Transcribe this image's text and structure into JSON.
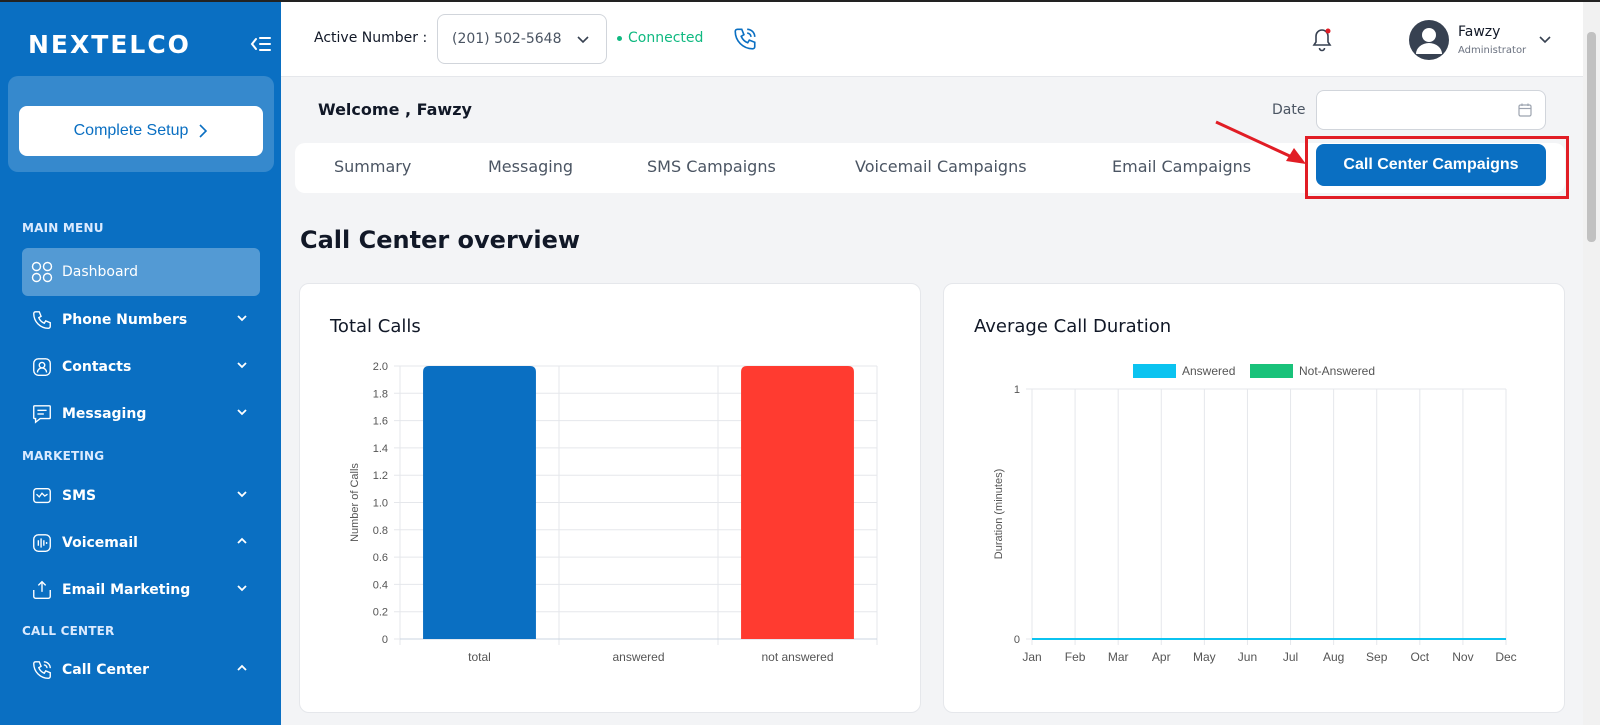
{
  "sidebar": {
    "logo": "NEXTELCO",
    "setup_button": "Complete Setup",
    "sections": {
      "main": "MAIN MENU",
      "marketing": "MARKETING",
      "call_center": "CALL CENTER"
    },
    "items": {
      "dashboard": "Dashboard",
      "phone_numbers": "Phone Numbers",
      "contacts": "Contacts",
      "messaging": "Messaging",
      "sms": "SMS",
      "voicemail": "Voicemail",
      "email_marketing": "Email Marketing",
      "call_center": "Call Center"
    }
  },
  "header": {
    "active_number_label": "Active Number :",
    "active_number": "(201) 502-5648",
    "status": "Connected",
    "user_name": "Fawzy",
    "user_role": "Administrator"
  },
  "page": {
    "welcome": "Welcome , Fawzy",
    "date_label": "Date",
    "tabs": {
      "summary": "Summary",
      "messaging": "Messaging",
      "sms": "SMS Campaigns",
      "voicemail": "Voicemail Campaigns",
      "email": "Email Campaigns",
      "call_center": "Call Center Campaigns"
    },
    "overview_title": "Call Center overview"
  },
  "colors": {
    "brand": "#0a6fc2",
    "connected": "#10b981",
    "not_answered_bar": "#ff3b30",
    "answered_series": "#0bc3f0",
    "not_answered_series": "#19c27a",
    "highlight": "#e11d25"
  },
  "chart_data": [
    {
      "type": "bar",
      "title": "Total Calls",
      "ylabel": "Number of Calls",
      "categories": [
        "total",
        "answered",
        "not answered"
      ],
      "values": [
        2,
        0,
        2
      ],
      "bar_colors": [
        "#0a6fc2",
        "#0a6fc2",
        "#ff3b30"
      ],
      "ylim": [
        0,
        2
      ],
      "yticks": [
        "2.0",
        "1.8",
        "1.6",
        "1.4",
        "1.2",
        "1.0",
        "0.8",
        "0.6",
        "0.4",
        "0.2",
        "0"
      ],
      "grid": true
    },
    {
      "type": "line",
      "title": "Average Call Duration",
      "ylabel": "Duration (minutes)",
      "categories": [
        "Jan",
        "Feb",
        "Mar",
        "Apr",
        "May",
        "Jun",
        "Jul",
        "Aug",
        "Sep",
        "Oct",
        "Nov",
        "Dec"
      ],
      "series": [
        {
          "name": "Answered",
          "color": "#0bc3f0",
          "values": [
            0,
            0,
            0,
            0,
            0,
            0,
            0,
            0,
            0,
            0,
            0,
            0
          ]
        },
        {
          "name": "Not-Answered",
          "color": "#19c27a",
          "values": [
            0,
            0,
            0,
            0,
            0,
            0,
            0,
            0,
            0,
            0,
            0,
            0
          ]
        }
      ],
      "ylim": [
        0,
        1
      ],
      "yticks": [
        "1",
        "0"
      ],
      "legend": "top-center",
      "grid": true
    }
  ]
}
